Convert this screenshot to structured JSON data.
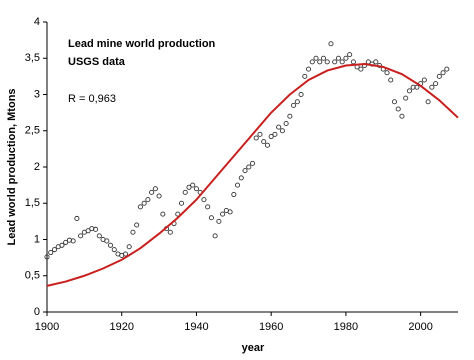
{
  "chart_data": {
    "type": "scatter",
    "annotations": [
      "Lead mine world production",
      "USGS data",
      "R = 0,963"
    ],
    "x_label": "year",
    "y_label": "Lead world production, Mtons",
    "xlim": [
      1900,
      2010
    ],
    "xticks": [
      1900,
      1920,
      1940,
      1960,
      1980,
      2000
    ],
    "ylim": [
      0,
      4
    ],
    "yticks": [
      0,
      {
        "value": 0.5,
        "label": "0,5"
      },
      1,
      {
        "value": 1.5,
        "label": "1,5"
      },
      2,
      {
        "value": 2.5,
        "label": "2,5"
      },
      3,
      {
        "value": 3.5,
        "label": "3,5"
      },
      4
    ],
    "series": [
      {
        "type": "scatter",
        "color": "#333333",
        "x": [
          1900,
          1901,
          1902,
          1903,
          1904,
          1905,
          1906,
          1907,
          1908,
          1909,
          1910,
          1911,
          1912,
          1913,
          1914,
          1915,
          1916,
          1917,
          1918,
          1919,
          1920,
          1921,
          1922,
          1923,
          1924,
          1925,
          1926,
          1927,
          1928,
          1929,
          1930,
          1931,
          1932,
          1933,
          1934,
          1935,
          1936,
          1937,
          1938,
          1939,
          1940,
          1941,
          1942,
          1943,
          1944,
          1945,
          1946,
          1947,
          1948,
          1949,
          1950,
          1951,
          1952,
          1953,
          1954,
          1955,
          1956,
          1957,
          1958,
          1959,
          1960,
          1961,
          1962,
          1963,
          1964,
          1965,
          1966,
          1967,
          1968,
          1969,
          1970,
          1971,
          1972,
          1973,
          1974,
          1975,
          1976,
          1977,
          1978,
          1979,
          1980,
          1981,
          1982,
          1983,
          1984,
          1985,
          1986,
          1987,
          1988,
          1989,
          1990,
          1991,
          1992,
          1993,
          1994,
          1995,
          1996,
          1997,
          1998,
          1999,
          2000,
          2001,
          2002,
          2003,
          2004,
          2005,
          2006,
          2007
        ],
        "values": [
          0.76,
          0.82,
          0.86,
          0.9,
          0.92,
          0.96,
          0.99,
          0.98,
          1.29,
          1.05,
          1.1,
          1.12,
          1.15,
          1.14,
          1.05,
          1.0,
          0.98,
          0.92,
          0.86,
          0.8,
          0.78,
          0.8,
          0.9,
          1.1,
          1.2,
          1.45,
          1.5,
          1.55,
          1.65,
          1.7,
          1.6,
          1.35,
          1.15,
          1.1,
          1.22,
          1.35,
          1.5,
          1.65,
          1.72,
          1.75,
          1.7,
          1.65,
          1.55,
          1.45,
          1.3,
          1.05,
          1.25,
          1.35,
          1.4,
          1.38,
          1.62,
          1.75,
          1.85,
          1.95,
          2.0,
          2.05,
          2.4,
          2.45,
          2.35,
          2.3,
          2.42,
          2.45,
          2.55,
          2.5,
          2.6,
          2.7,
          2.85,
          2.9,
          3.0,
          3.25,
          3.35,
          3.45,
          3.5,
          3.45,
          3.5,
          3.45,
          3.7,
          3.45,
          3.5,
          3.45,
          3.5,
          3.55,
          3.45,
          3.38,
          3.35,
          3.4,
          3.45,
          3.42,
          3.45,
          3.4,
          3.35,
          3.3,
          3.2,
          2.9,
          2.8,
          2.7,
          2.95,
          3.05,
          3.1,
          3.1,
          3.15,
          3.2,
          2.9,
          3.1,
          3.15,
          3.25,
          3.3,
          3.35
        ]
      },
      {
        "type": "line",
        "color": "#c8201e",
        "x": [
          1900,
          1905,
          1910,
          1915,
          1920,
          1925,
          1930,
          1935,
          1940,
          1945,
          1950,
          1955,
          1960,
          1965,
          1970,
          1975,
          1980,
          1985,
          1990,
          1995,
          2000,
          2005,
          2010
        ],
        "values": [
          0.36,
          0.42,
          0.5,
          0.6,
          0.72,
          0.88,
          1.08,
          1.3,
          1.55,
          1.85,
          2.15,
          2.45,
          2.75,
          3.0,
          3.2,
          3.33,
          3.4,
          3.42,
          3.38,
          3.28,
          3.12,
          2.92,
          2.68
        ]
      }
    ]
  }
}
